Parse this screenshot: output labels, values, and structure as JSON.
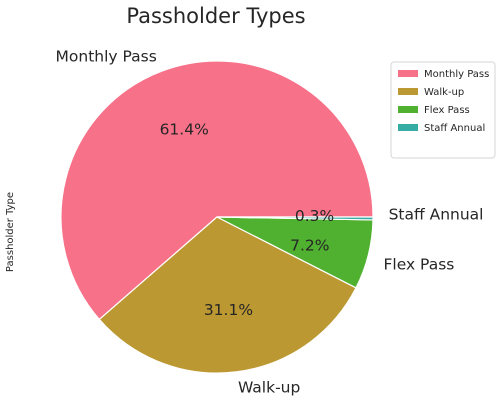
{
  "chart_data": {
    "type": "pie",
    "title": "Passholder Types",
    "ylabel": "Passholder Type",
    "categories": [
      "Monthly Pass",
      "Walk-up",
      "Flex Pass",
      "Staff Annual"
    ],
    "values": [
      61.4,
      31.1,
      7.2,
      0.3
    ],
    "percent_labels": [
      "61.4%",
      "31.1%",
      "7.2%",
      "0.3%"
    ],
    "colors": [
      "#f77189",
      "#bb9832",
      "#50b131",
      "#36ada4"
    ],
    "start_angle_deg": 0,
    "direction": "counterclockwise",
    "legend": {
      "placement": "top-right",
      "entries": [
        "Monthly Pass",
        "Walk-up",
        "Flex Pass",
        "Staff Annual"
      ]
    }
  }
}
